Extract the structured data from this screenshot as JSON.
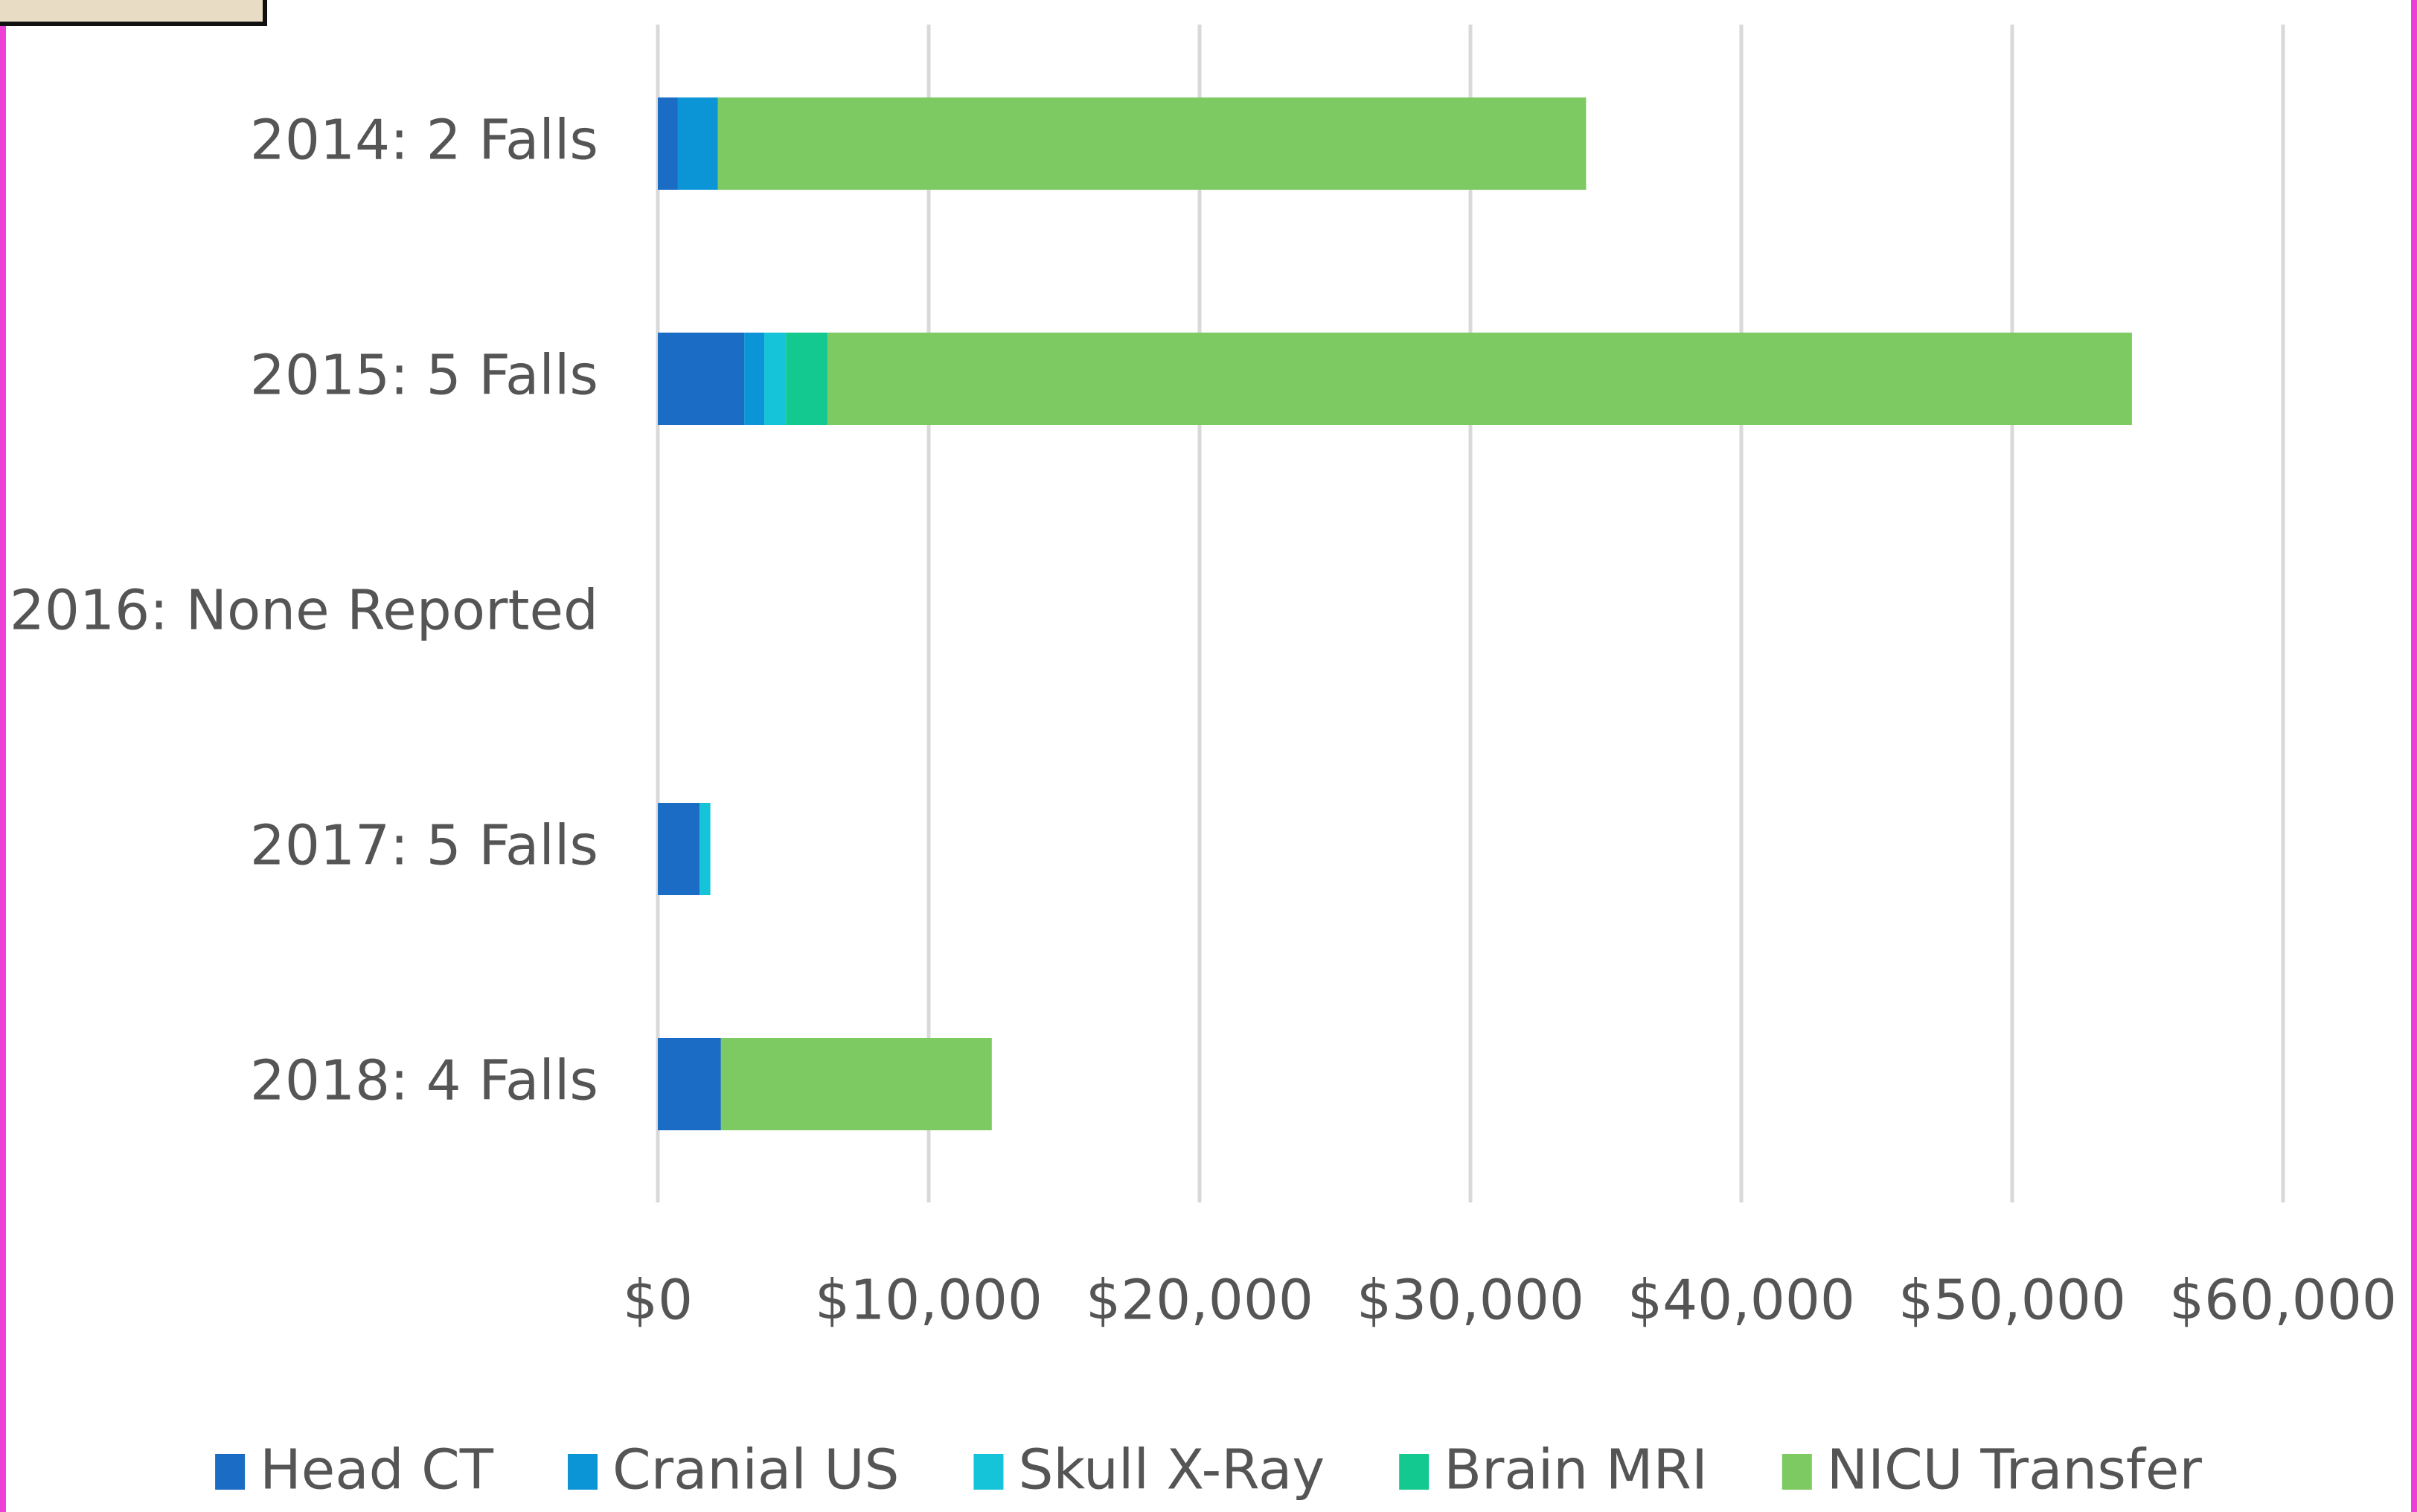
{
  "chart_data": {
    "type": "bar",
    "orientation": "horizontal",
    "stacked": true,
    "categories": [
      "2014: 2 Falls",
      "2015: 5 Falls",
      "2016: None Reported",
      "2017: 5 Falls",
      "2018: 4 Falls"
    ],
    "series": [
      {
        "name": "Head CT",
        "color": "#1a6cc4",
        "values": [
          740,
          3190,
          null,
          1540,
          2330
        ]
      },
      {
        "name": "Cranial US",
        "color": "#0b95d6",
        "values": [
          1480,
          740,
          null,
          0,
          0
        ]
      },
      {
        "name": "Skull X-Ray",
        "color": "#16c4da",
        "values": [
          0,
          800,
          null,
          400,
          0
        ]
      },
      {
        "name": "Brain MRI",
        "color": "#14c98f",
        "values": [
          0,
          1540,
          null,
          0,
          0
        ]
      },
      {
        "name": "NICU Transfer",
        "color": "#7dca62",
        "values": [
          32050,
          48150,
          null,
          0,
          10000
        ]
      }
    ],
    "xlim": [
      0,
      60000
    ],
    "xticks": [
      {
        "value": 0,
        "label": "$0"
      },
      {
        "value": 10000,
        "label": "$10,000"
      },
      {
        "value": 20000,
        "label": "$20,000"
      },
      {
        "value": 30000,
        "label": "$30,000"
      },
      {
        "value": 40000,
        "label": "$40,000"
      },
      {
        "value": 50000,
        "label": "$50,000"
      },
      {
        "value": 60000,
        "label": "$60,000"
      }
    ],
    "grid": true,
    "legend": "bottom"
  }
}
